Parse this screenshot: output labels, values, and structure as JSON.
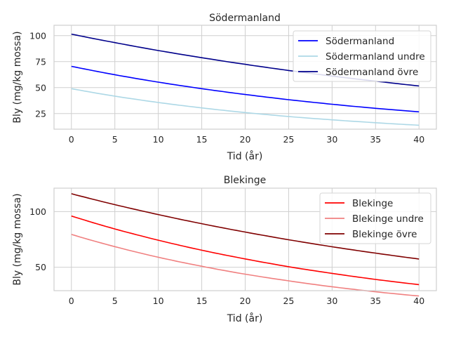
{
  "chart_data": [
    {
      "type": "line",
      "title": "Södermanland",
      "xlabel": "Tid (år)",
      "ylabel": "Bly (mg/kg mossa)",
      "xlim": [
        -2,
        42
      ],
      "ylim": [
        10,
        110
      ],
      "xticks": [
        0,
        5,
        10,
        15,
        20,
        25,
        30,
        35,
        40
      ],
      "yticks": [
        25,
        50,
        75,
        100
      ],
      "grid": true,
      "legend_position": "top-right",
      "x": [
        0,
        5,
        10,
        15,
        20,
        25,
        30,
        35,
        40
      ],
      "series": [
        {
          "name": "Södermanland",
          "color": "#0000ff",
          "values": [
            70.5,
            62.4,
            55.3,
            49.0,
            43.4,
            38.4,
            34.0,
            30.1,
            26.7
          ]
        },
        {
          "name": "Södermanland undre",
          "color": "#add8e6",
          "values": [
            49.0,
            41.8,
            35.7,
            30.5,
            26.0,
            22.2,
            19.0,
            16.2,
            13.8
          ]
        },
        {
          "name": "Södermanland övre",
          "color": "#00008b",
          "values": [
            101.5,
            93.3,
            85.7,
            78.8,
            72.4,
            66.5,
            61.1,
            56.2,
            51.6
          ]
        }
      ]
    },
    {
      "type": "line",
      "title": "Blekinge",
      "xlabel": "Tid (år)",
      "ylabel": "Bly (mg/kg mossa)",
      "xlim": [
        -2,
        42
      ],
      "ylim": [
        29,
        121
      ],
      "xticks": [
        0,
        5,
        10,
        15,
        20,
        25,
        30,
        35,
        40
      ],
      "yticks": [
        50,
        100
      ],
      "grid": true,
      "legend_position": "top-right",
      "x": [
        0,
        5,
        10,
        15,
        20,
        25,
        30,
        35,
        40
      ],
      "series": [
        {
          "name": "Blekinge",
          "color": "#ff0000",
          "values": [
            96.0,
            84.4,
            74.3,
            65.3,
            57.5,
            50.5,
            44.5,
            39.1,
            34.4
          ]
        },
        {
          "name": "Blekinge undre",
          "color": "#f08080",
          "values": [
            79.5,
            68.5,
            59.0,
            50.9,
            43.8,
            37.8,
            32.5,
            28.0,
            24.2
          ]
        },
        {
          "name": "Blekinge övre",
          "color": "#800000",
          "values": [
            116.0,
            106.2,
            97.3,
            89.1,
            81.6,
            74.7,
            68.4,
            62.7,
            57.4
          ]
        }
      ]
    }
  ]
}
